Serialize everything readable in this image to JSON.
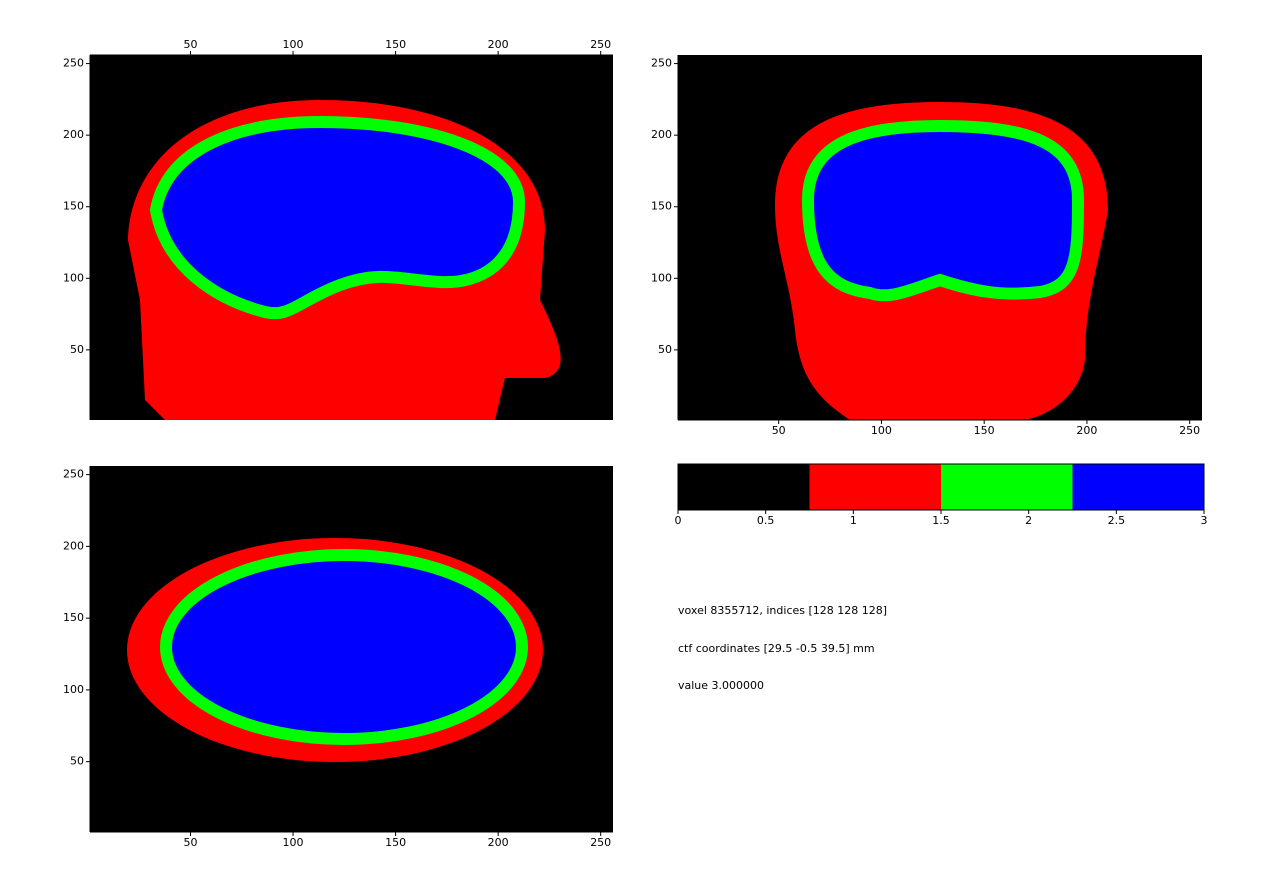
{
  "chart_data": [
    {
      "type": "image",
      "xaxis_location": "top",
      "xlim": [
        1,
        256
      ],
      "ylim": [
        1,
        256
      ],
      "xticks": [
        50,
        100,
        150,
        200,
        250
      ],
      "yticks": [
        50,
        100,
        150,
        200,
        250
      ]
    },
    {
      "type": "image",
      "xaxis_location": "bottom",
      "xlim": [
        1,
        256
      ],
      "ylim": [
        1,
        256
      ],
      "xticks": [
        50,
        100,
        150,
        200,
        250
      ],
      "yticks": [
        50,
        100,
        150,
        200,
        250
      ]
    },
    {
      "type": "image",
      "xaxis_location": "bottom",
      "xlim": [
        1,
        256
      ],
      "ylim": [
        1,
        256
      ],
      "xticks": [
        50,
        100,
        150,
        200,
        250
      ],
      "yticks": [
        50,
        100,
        150,
        200,
        250
      ]
    },
    {
      "type": "colorbar",
      "xlim": [
        0,
        3
      ],
      "xticks": [
        0,
        0.5,
        1,
        1.5,
        2,
        2.5,
        3
      ],
      "colors": [
        "#000000",
        "#ff0000",
        "#00ff00",
        "#0000ff"
      ]
    }
  ],
  "info_lines": [
    "voxel 8355712, indices [128 128 128]",
    "ctf coordinates [29.5 -0.5 39.5] mm",
    "value 3.000000"
  ]
}
